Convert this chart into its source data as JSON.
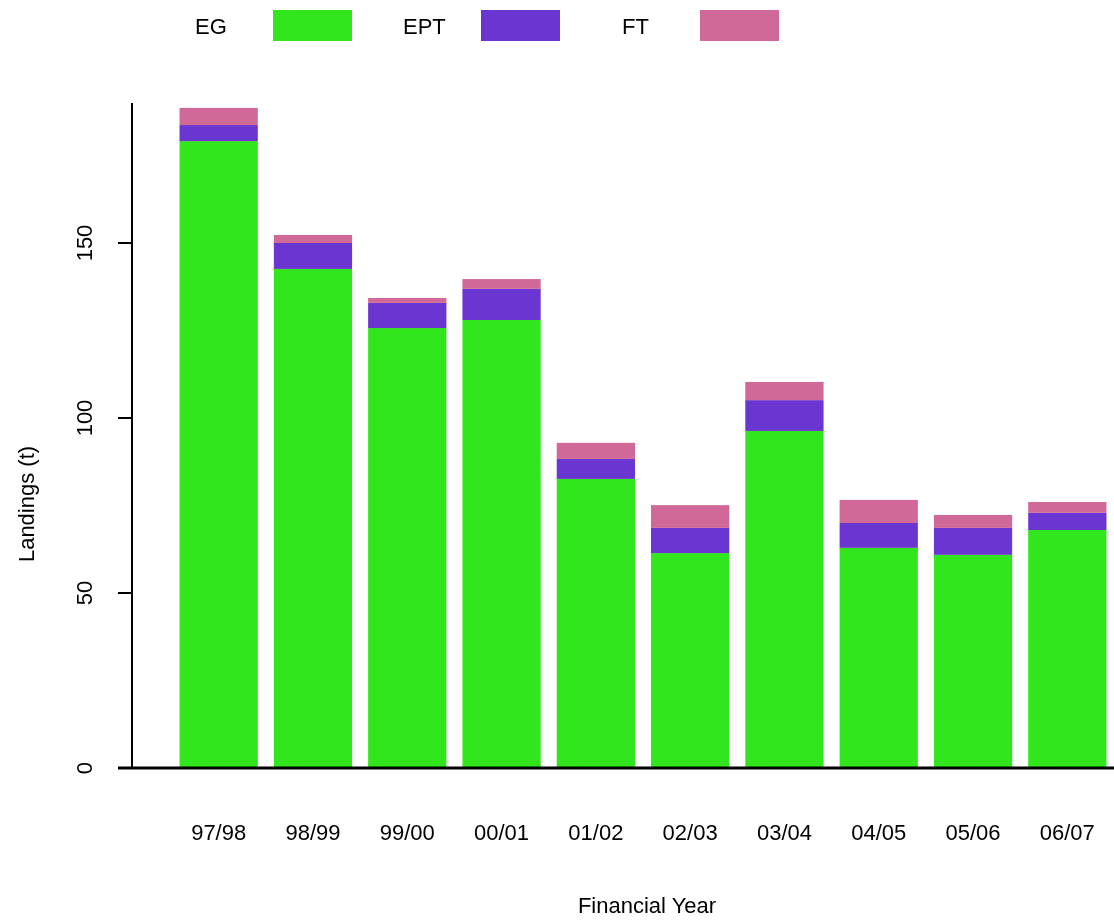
{
  "chart_data": {
    "type": "bar",
    "stacked": true,
    "xlabel": "Financial Year",
    "ylabel": "Landings (t)",
    "categories": [
      "97/98",
      "98/99",
      "99/00",
      "00/01",
      "01/02",
      "02/03",
      "03/04",
      "04/05",
      "05/06",
      "06/07"
    ],
    "series": [
      {
        "name": "EG",
        "color": "#32e61e",
        "values": [
          179.1,
          142.6,
          125.7,
          128,
          82.6,
          61.4,
          96.3,
          62.9,
          60.9,
          68
        ]
      },
      {
        "name": "EPT",
        "color": "#6a35d0",
        "values": [
          4.6,
          7.4,
          7.2,
          8.9,
          5.7,
          7.2,
          8.8,
          7.1,
          7.7,
          4.9
        ]
      },
      {
        "name": "FT",
        "color": "#d06898",
        "values": [
          4.9,
          2.3,
          1.4,
          2.8,
          4.6,
          6.5,
          5.2,
          6.6,
          3.7,
          3.1
        ]
      }
    ],
    "ylim": [
      0,
      190
    ],
    "yticks": [
      0,
      50,
      100,
      150
    ],
    "grid": false,
    "legend": "top left"
  }
}
